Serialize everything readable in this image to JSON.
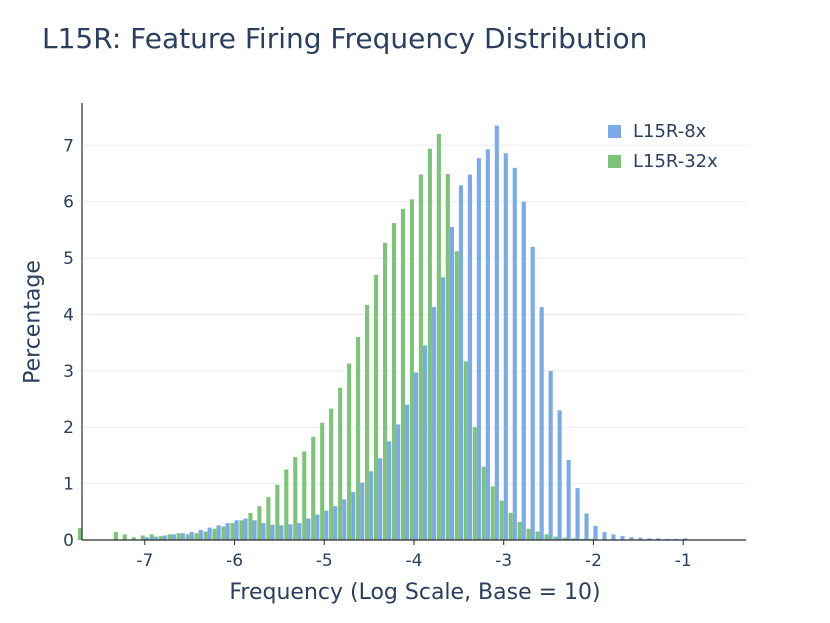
{
  "chart_data": {
    "type": "bar",
    "title": "L15R: Feature Firing Frequency Distribution",
    "xlabel": "Frequency (Log Scale, Base = 10)",
    "ylabel": "Percentage",
    "xlim": [
      -7.7,
      -0.3
    ],
    "ylim": [
      0,
      7.75
    ],
    "xticks": [
      -7,
      -6,
      -5,
      -4,
      -3,
      -2,
      -1
    ],
    "yticks": [
      0,
      1,
      2,
      3,
      4,
      5,
      6,
      7
    ],
    "grid": "horizontal",
    "legend_position": "top-right",
    "bin_width": 0.1,
    "series": [
      {
        "name": "L15R-8x",
        "color": "#7aaae8",
        "x": [
          -7.0,
          -6.9,
          -6.8,
          -6.7,
          -6.6,
          -6.5,
          -6.4,
          -6.3,
          -6.2,
          -6.1,
          -6.0,
          -5.9,
          -5.8,
          -5.7,
          -5.6,
          -5.5,
          -5.4,
          -5.3,
          -5.2,
          -5.1,
          -5.0,
          -4.9,
          -4.8,
          -4.7,
          -4.6,
          -4.5,
          -4.4,
          -4.3,
          -4.2,
          -4.1,
          -4.0,
          -3.9,
          -3.8,
          -3.7,
          -3.6,
          -3.5,
          -3.4,
          -3.3,
          -3.2,
          -3.1,
          -3.0,
          -2.9,
          -2.8,
          -2.7,
          -2.6,
          -2.5,
          -2.4,
          -2.3,
          -2.2,
          -2.1,
          -2.0,
          -1.9,
          -1.8,
          -1.7,
          -1.6,
          -1.5,
          -1.4,
          -1.3,
          -1.2,
          -1.1,
          -1.0
        ],
        "values": [
          0.05,
          0.06,
          0.08,
          0.1,
          0.12,
          0.14,
          0.18,
          0.22,
          0.26,
          0.3,
          0.35,
          0.38,
          0.35,
          0.3,
          0.27,
          0.26,
          0.28,
          0.3,
          0.38,
          0.45,
          0.52,
          0.6,
          0.72,
          0.85,
          1.02,
          1.22,
          1.45,
          1.75,
          2.05,
          2.4,
          2.97,
          3.45,
          4.13,
          4.66,
          5.55,
          6.29,
          6.48,
          6.77,
          6.93,
          7.35,
          6.86,
          6.6,
          6.0,
          5.2,
          4.13,
          3.0,
          2.3,
          1.42,
          0.92,
          0.47,
          0.25,
          0.14,
          0.1,
          0.07,
          0.05,
          0.04,
          0.03,
          0.03,
          0.02,
          0.02,
          0.03
        ]
      },
      {
        "name": "L15R-32x",
        "color": "#7dc47a",
        "x": [
          -7.7,
          -7.6,
          -7.5,
          -7.4,
          -7.3,
          -7.2,
          -7.1,
          -7.0,
          -6.9,
          -6.8,
          -6.7,
          -6.6,
          -6.5,
          -6.4,
          -6.3,
          -6.2,
          -6.1,
          -6.0,
          -5.9,
          -5.8,
          -5.7,
          -5.6,
          -5.5,
          -5.4,
          -5.3,
          -5.2,
          -5.1,
          -5.0,
          -4.9,
          -4.8,
          -4.7,
          -4.6,
          -4.5,
          -4.4,
          -4.3,
          -4.2,
          -4.1,
          -4.0,
          -3.9,
          -3.8,
          -3.7,
          -3.6,
          -3.5,
          -3.4,
          -3.3,
          -3.2,
          -3.1,
          -3.0,
          -2.9,
          -2.8,
          -2.7,
          -2.6,
          -2.5,
          -2.4,
          -2.3,
          -2.2,
          -2.1,
          -2.0
        ],
        "values": [
          0.21,
          0,
          0,
          0,
          0.14,
          0.1,
          0.05,
          0.08,
          0.1,
          0.07,
          0.1,
          0.12,
          0.1,
          0.12,
          0.15,
          0.2,
          0.24,
          0.3,
          0.35,
          0.48,
          0.6,
          0.76,
          0.98,
          1.25,
          1.47,
          1.57,
          1.83,
          2.08,
          2.33,
          2.7,
          3.13,
          3.6,
          4.17,
          4.7,
          5.27,
          5.62,
          5.87,
          6.04,
          6.48,
          6.94,
          7.2,
          6.49,
          5.12,
          3.17,
          2.0,
          1.3,
          0.95,
          0.7,
          0.48,
          0.32,
          0.2,
          0.15,
          0.1,
          0.06,
          0.04,
          0.03,
          0.02,
          0.02
        ]
      }
    ]
  }
}
